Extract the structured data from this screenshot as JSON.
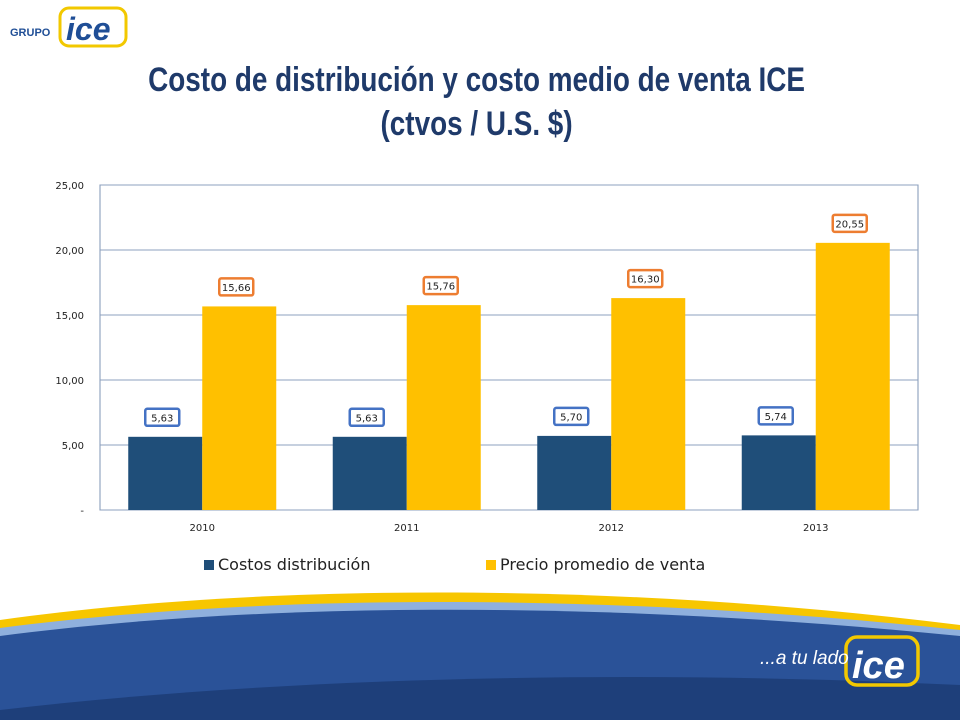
{
  "header": {
    "logo_prefix": "GRUPO",
    "logo_word": "ice"
  },
  "title_line1": "Costo de distribución y costo medio de venta ICE",
  "title_line2": "(ctvos / U.S. $)",
  "footer": {
    "tagline": "...a tu lado",
    "logo_word": "ice"
  },
  "colors": {
    "title": "#1f3a6a",
    "series_dist": "#1f4e79",
    "series_price": "#ffc000",
    "label_border_dist": "#4472c4",
    "label_border_price": "#ed7d31",
    "footer_blue": "#2a5298",
    "footer_yellow": "#f7c600",
    "logo_blue": "#1f4e96",
    "logo_yellow": "#f2c800"
  },
  "chart_data": {
    "type": "bar",
    "title": "Costo de distribución y costo medio de venta ICE (ctvos / U.S. $)",
    "categories": [
      "2010",
      "2011",
      "2012",
      "2013"
    ],
    "series": [
      {
        "name": "Costos distribución",
        "values": [
          5.63,
          5.63,
          5.7,
          5.74
        ],
        "labels": [
          "5,63",
          "5,63",
          "5,70",
          "5,74"
        ],
        "color": "#1f4e79"
      },
      {
        "name": "Precio promedio de venta",
        "values": [
          15.66,
          15.76,
          16.3,
          20.55
        ],
        "labels": [
          "15,66",
          "15,76",
          "16,30",
          "20,55"
        ],
        "color": "#ffc000"
      }
    ],
    "yticks": [
      "-",
      "5,00",
      "10,00",
      "15,00",
      "20,00",
      "25,00"
    ],
    "ytick_values": [
      0,
      5,
      10,
      15,
      20,
      25
    ],
    "ylim": [
      0,
      25
    ],
    "grid": true,
    "legend_position": "bottom"
  }
}
